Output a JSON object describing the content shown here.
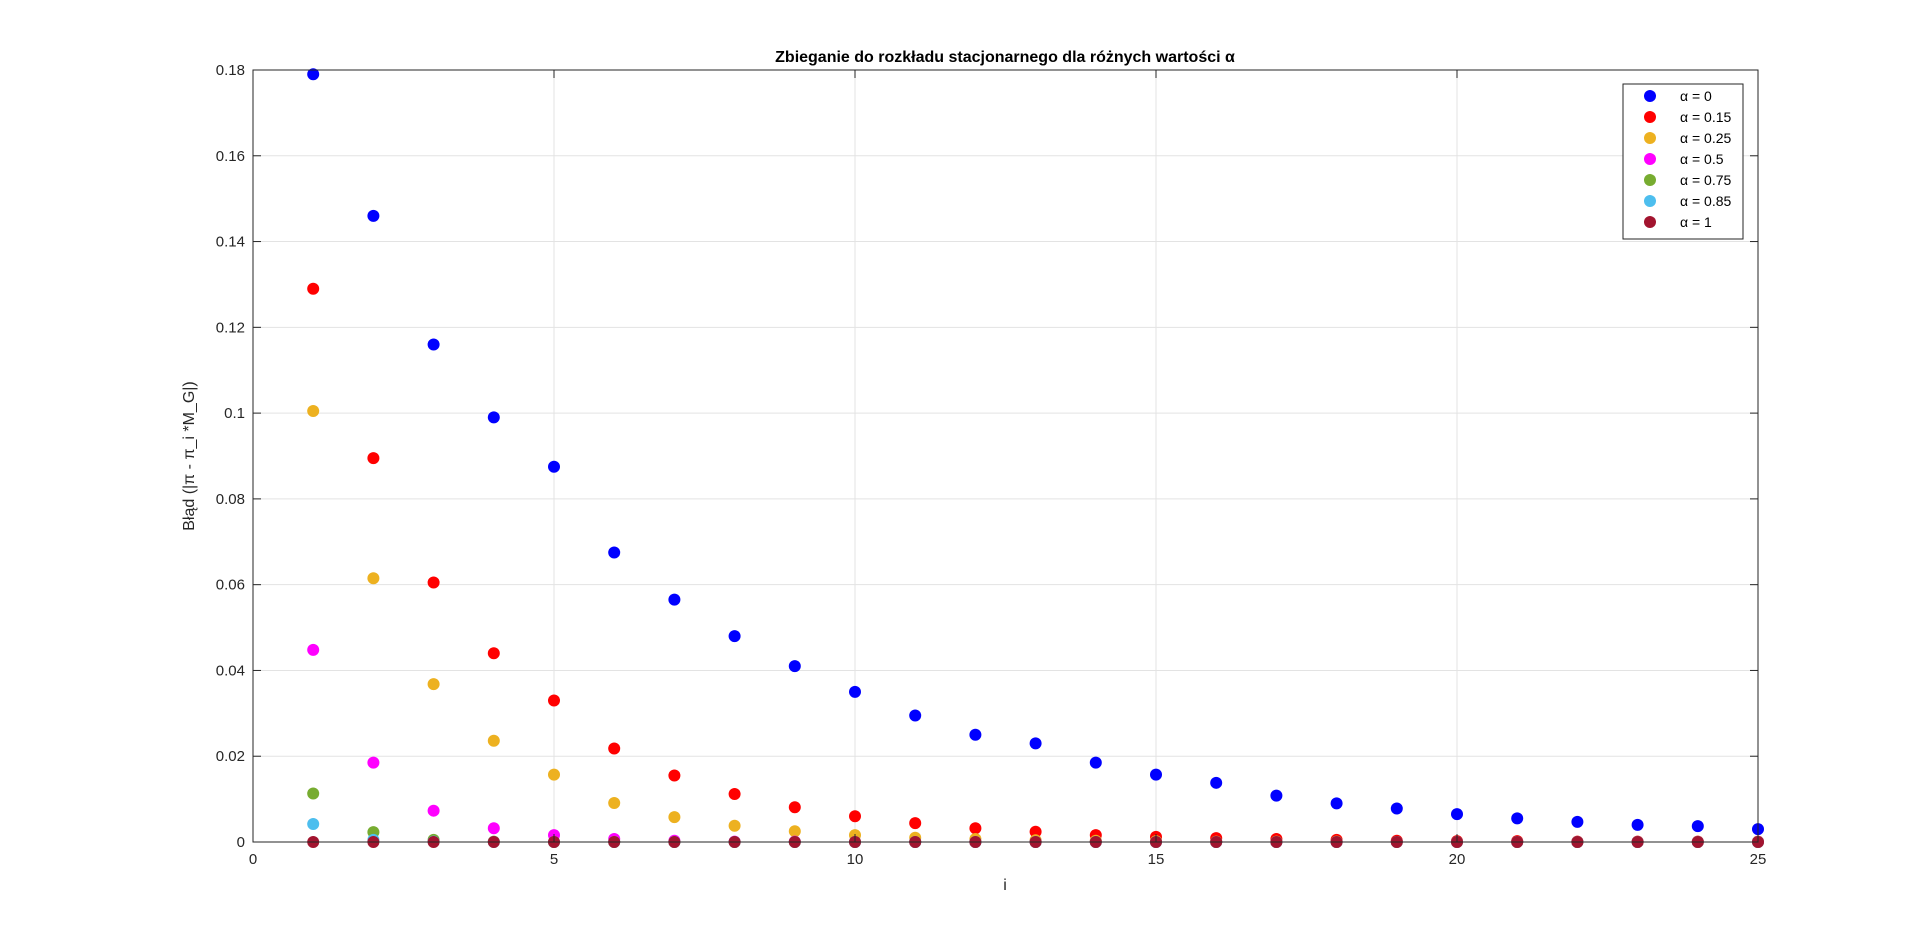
{
  "chart_data": {
    "type": "scatter",
    "title": "Zbieganie do rozkładu stacjonarnego dla różnych wartości α",
    "xlabel": "i",
    "ylabel": "Błąd (|π - π_i *M_G|)",
    "xlim": [
      0,
      25
    ],
    "ylim": [
      0,
      0.18
    ],
    "xticks": [
      0,
      5,
      10,
      15,
      20,
      25
    ],
    "yticks": [
      0,
      0.02,
      0.04,
      0.06,
      0.08,
      0.1,
      0.12,
      0.14,
      0.16,
      0.18
    ],
    "ytick_labels": [
      "0",
      "0.02",
      "0.04",
      "0.06",
      "0.08",
      "0.1",
      "0.12",
      "0.14",
      "0.16",
      "0.18"
    ],
    "grid": true,
    "legend_position": "top-right",
    "x": [
      1,
      2,
      3,
      4,
      5,
      6,
      7,
      8,
      9,
      10,
      11,
      12,
      13,
      14,
      15,
      16,
      17,
      18,
      19,
      20,
      21,
      22,
      23,
      24,
      25
    ],
    "series": [
      {
        "name": "α = 0",
        "color": "#0000ff",
        "values": [
          0.179,
          0.146,
          0.116,
          0.099,
          0.0875,
          0.0675,
          0.0565,
          0.048,
          0.041,
          0.035,
          0.0295,
          0.025,
          0.023,
          0.0185,
          0.0157,
          0.0138,
          0.0108,
          0.009,
          0.0078,
          0.0065,
          0.0055,
          0.0047,
          0.004,
          0.0037,
          0.003
        ]
      },
      {
        "name": "α = 0.15",
        "color": "#ff0000",
        "values": [
          0.129,
          0.0895,
          0.0605,
          0.044,
          0.033,
          0.0218,
          0.0155,
          0.0112,
          0.0081,
          0.006,
          0.0044,
          0.0032,
          0.0024,
          0.0016,
          0.0012,
          0.0009,
          0.0007,
          0.0005,
          0.0003,
          0.0002,
          0.0002,
          0.0001,
          0.0001,
          0.0001,
          0.0001
        ]
      },
      {
        "name": "α = 0.25",
        "color": "#edb120",
        "values": [
          0.1005,
          0.0615,
          0.0368,
          0.0236,
          0.0157,
          0.0091,
          0.0058,
          0.0038,
          0.0025,
          0.0016,
          0.001,
          0.0007,
          0.0004,
          0.0003,
          0.0002,
          0.0001,
          0.0001,
          0.0001,
          0,
          0,
          0,
          0,
          0,
          0,
          0
        ]
      },
      {
        "name": "α = 0.5",
        "color": "#ff00ff",
        "values": [
          0.0448,
          0.0185,
          0.0073,
          0.0032,
          0.0016,
          0.0007,
          0.0003,
          0.0001,
          0.0001,
          0,
          0,
          0,
          0,
          0,
          0,
          0,
          0,
          0,
          0,
          0,
          0,
          0,
          0,
          0,
          0
        ]
      },
      {
        "name": "α = 0.75",
        "color": "#77ac30",
        "values": [
          0.0113,
          0.0023,
          0.0005,
          0.0001,
          0,
          0,
          0,
          0,
          0,
          0,
          0,
          0,
          0,
          0,
          0,
          0,
          0,
          0,
          0,
          0,
          0,
          0,
          0,
          0,
          0
        ]
      },
      {
        "name": "α = 0.85",
        "color": "#4dbeee",
        "values": [
          0.0042,
          0.0005,
          0.0001,
          0,
          0,
          0,
          0,
          0,
          0,
          0,
          0,
          0,
          0,
          0,
          0,
          0,
          0,
          0,
          0,
          0,
          0,
          0,
          0,
          0,
          0
        ]
      },
      {
        "name": "α = 1",
        "color": "#a2142f",
        "values": [
          0,
          0,
          0,
          0,
          0,
          0,
          0,
          0,
          0,
          0,
          0,
          0,
          0,
          0,
          0,
          0,
          0,
          0,
          0,
          0,
          0,
          0,
          0,
          0,
          0
        ]
      }
    ]
  }
}
